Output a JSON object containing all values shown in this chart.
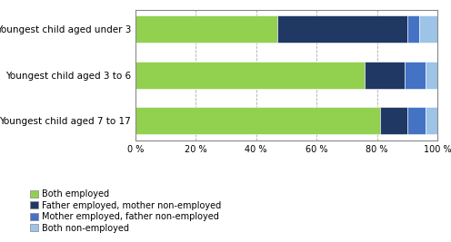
{
  "categories": [
    "Youngest child aged under 3",
    "Youngest child aged 3 to 6",
    "Youngest child aged 7 to 17"
  ],
  "series": [
    {
      "label": "Both employed",
      "values": [
        47,
        76,
        81
      ],
      "color": "#92d050"
    },
    {
      "label": "Father employed, mother non-employed",
      "values": [
        43,
        13,
        9
      ],
      "color": "#1f3864"
    },
    {
      "label": "Mother employed, father non-employed",
      "values": [
        4,
        7,
        6
      ],
      "color": "#4472c4"
    },
    {
      "label": "Both non-employed",
      "values": [
        6,
        4,
        4
      ],
      "color": "#9dc3e6"
    }
  ],
  "xlim": [
    0,
    100
  ],
  "xticks": [
    0,
    20,
    40,
    60,
    80,
    100
  ],
  "xticklabels": [
    "0 %",
    "20 %",
    "40 %",
    "60 %",
    "80 %",
    "100 %"
  ],
  "grid_color": "#aaaaaa",
  "background_color": "#ffffff",
  "bar_height": 0.6,
  "legend_fontsize": 7,
  "tick_fontsize": 7,
  "ylabel_fontsize": 7.5,
  "spine_color": "#888888"
}
